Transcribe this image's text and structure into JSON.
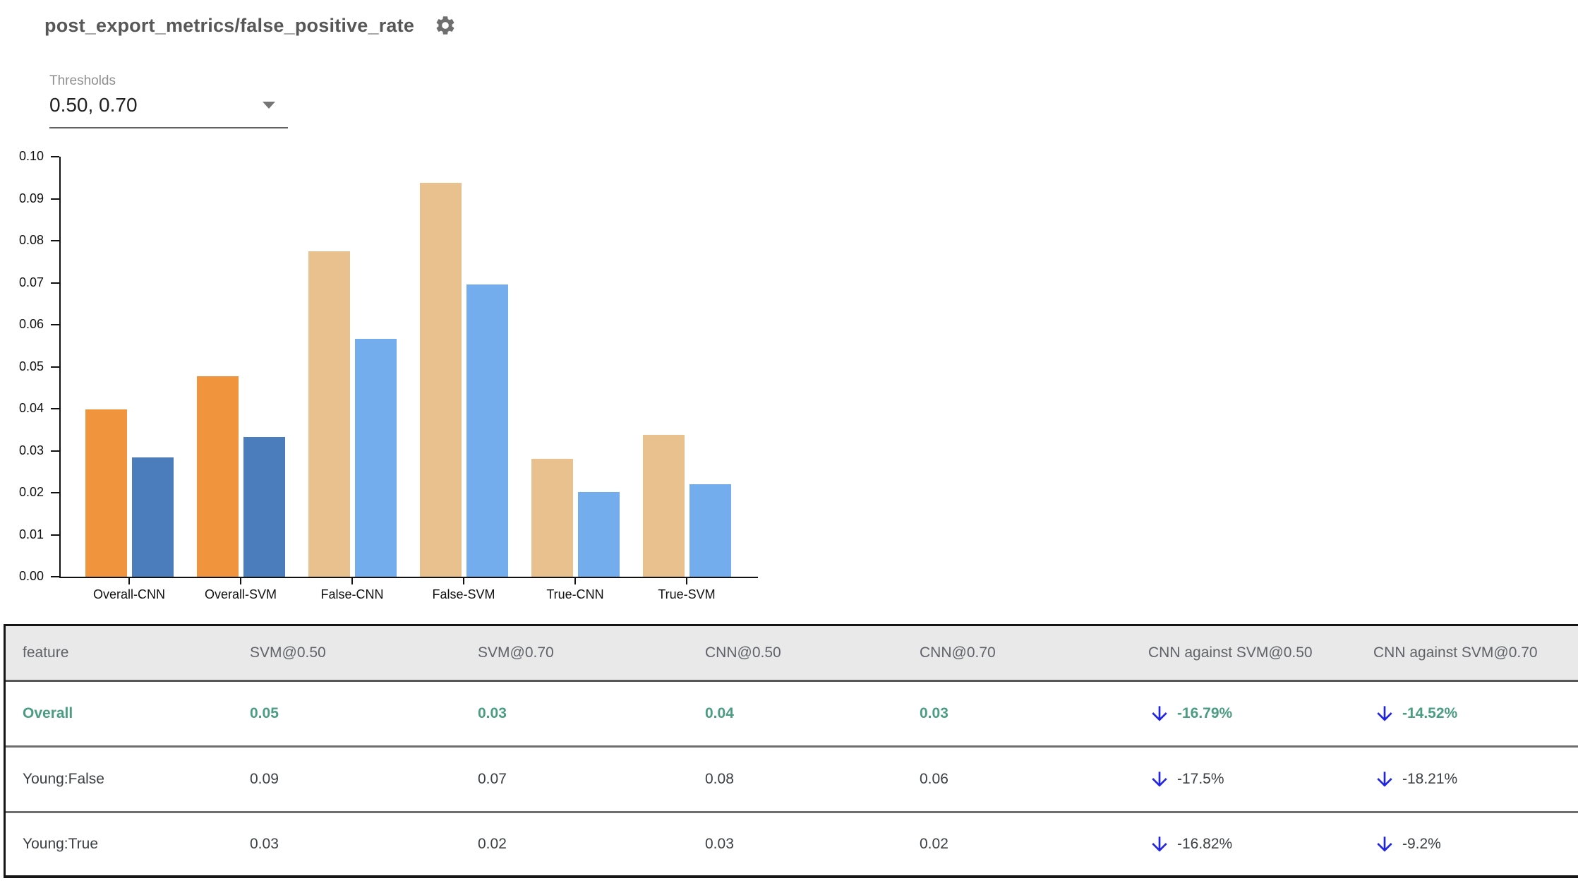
{
  "header": {
    "title": "post_export_metrics/false_positive_rate"
  },
  "thresholds": {
    "label": "Thresholds",
    "value": "0.50, 0.70"
  },
  "chart_data": {
    "type": "bar",
    "title": "post_export_metrics/false_positive_rate",
    "categories": [
      "Overall-CNN",
      "Overall-SVM",
      "False-CNN",
      "False-SVM",
      "True-CNN",
      "True-SVM"
    ],
    "series": [
      {
        "name": "threshold 0.50",
        "values": [
          0.0398,
          0.0478,
          0.0774,
          0.0937,
          0.028,
          0.0338
        ]
      },
      {
        "name": "threshold 0.70",
        "values": [
          0.0284,
          0.0333,
          0.0567,
          0.0695,
          0.0201,
          0.0221
        ]
      }
    ],
    "group_palette": [
      "overall",
      "overall",
      "slice",
      "slice",
      "slice",
      "slice"
    ],
    "palette": {
      "overall": [
        "#F0943E",
        "#4B7CBB"
      ],
      "slice": [
        "#E9C18F",
        "#74ADEE"
      ]
    },
    "ylim": [
      0,
      0.1
    ],
    "yticks": [
      "0.00",
      "0.01",
      "0.02",
      "0.03",
      "0.04",
      "0.05",
      "0.06",
      "0.07",
      "0.08",
      "0.09",
      "0.10"
    ],
    "xlabel": "",
    "ylabel": "",
    "grid": false,
    "legend": "none"
  },
  "table": {
    "columns": [
      "feature",
      "SVM@0.50",
      "SVM@0.70",
      "CNN@0.50",
      "CNN@0.70",
      "CNN against SVM@0.50",
      "CNN against SVM@0.70"
    ],
    "rows": [
      {
        "feature": "Overall",
        "values": [
          "0.05",
          "0.03",
          "0.04",
          "0.03"
        ],
        "deltas": [
          "-16.79%",
          "-14.52%"
        ],
        "highlight": true
      },
      {
        "feature": "Young:False",
        "values": [
          "0.09",
          "0.07",
          "0.08",
          "0.06"
        ],
        "deltas": [
          "-17.5%",
          "-18.21%"
        ],
        "highlight": false
      },
      {
        "feature": "Young:True",
        "values": [
          "0.03",
          "0.02",
          "0.03",
          "0.02"
        ],
        "deltas": [
          "-16.82%",
          "-9.2%"
        ],
        "highlight": false
      }
    ]
  },
  "colors": {
    "bar_threshold_050_overall": "#F0943E",
    "bar_threshold_070_overall": "#4B7CBB",
    "bar_threshold_050_slice": "#E9C18F",
    "bar_threshold_070_slice": "#74ADEE",
    "highlight_green": "#4a9d80",
    "arrow_blue": "#2125e2",
    "table_header_bg": "#e9e9e9"
  }
}
